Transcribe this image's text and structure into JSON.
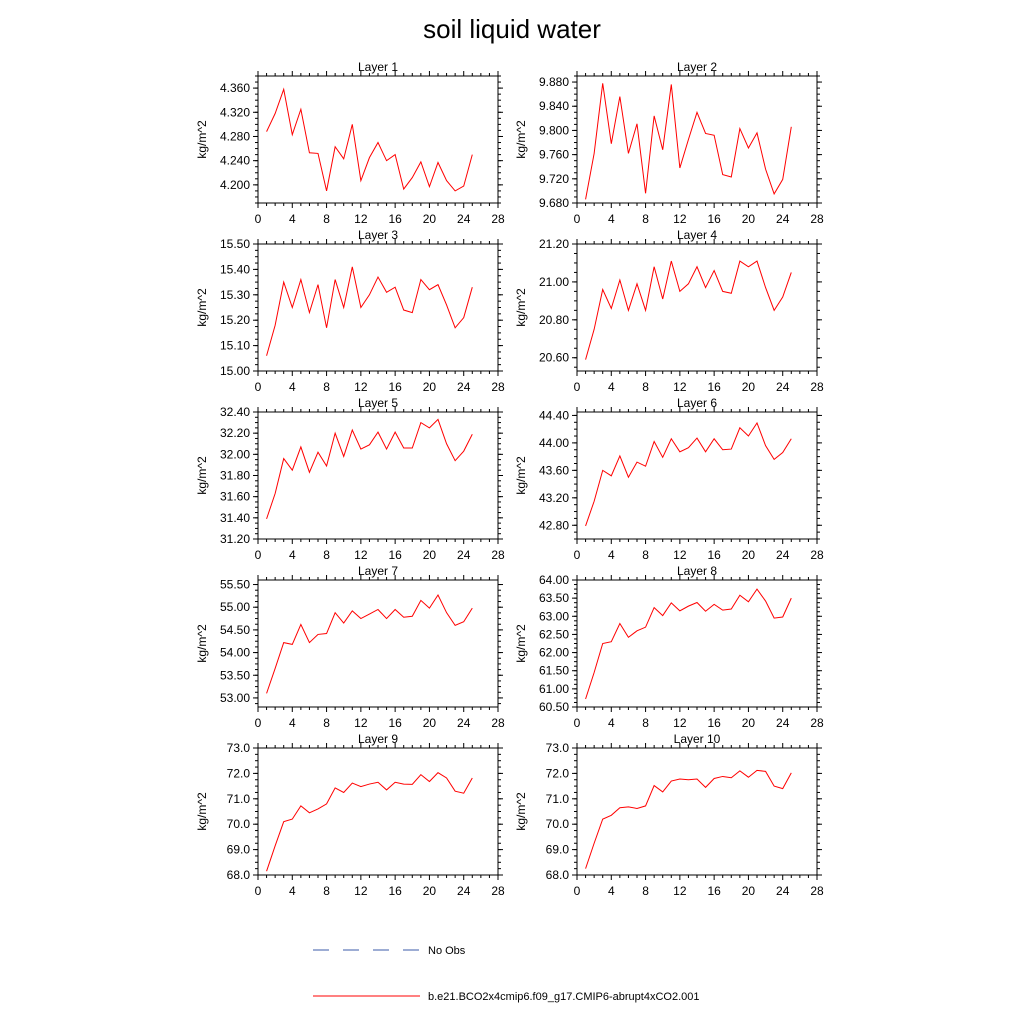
{
  "chart_data": {
    "type": "line",
    "title": "soil liquid water",
    "xticks": [
      "0",
      "4",
      "8",
      "12",
      "16",
      "20",
      "24",
      "28"
    ],
    "xlim": [
      0,
      28
    ],
    "grid": false,
    "legend_placement": "bottom-center",
    "legend": [
      {
        "label": "No Obs",
        "color": "#3b5ba9",
        "style": "dashed"
      },
      {
        "label": "b.e21.BCO2x4cmip6.f09_g17.CMIP6-abrupt4xCO2.001",
        "color": "#ff0000",
        "style": "solid"
      }
    ],
    "panels": [
      {
        "title": "Layer 1",
        "ylabel": "kg/m^2",
        "ylim": [
          4.17,
          4.38
        ],
        "yticks": [
          "4.200",
          "4.240",
          "4.280",
          "4.320",
          "4.360"
        ],
        "series": [
          {
            "name": "b.e21.BCO2x4cmip6.f09_g17.CMIP6-abrupt4xCO2.001",
            "color": "#ff0000",
            "x": [
              1,
              2,
              3,
              4,
              5,
              6,
              7,
              8,
              9,
              10,
              11,
              12,
              13,
              14,
              15,
              16,
              17,
              18,
              19,
              20,
              21,
              22,
              23,
              24,
              25
            ],
            "y": [
              4.288,
              4.318,
              4.358,
              4.283,
              4.325,
              4.253,
              4.252,
              4.19,
              4.263,
              4.243,
              4.3,
              4.207,
              4.245,
              4.27,
              4.24,
              4.25,
              4.193,
              4.212,
              4.238,
              4.197,
              4.237,
              4.207,
              4.19,
              4.198,
              4.25
            ]
          }
        ]
      },
      {
        "title": "Layer 2",
        "ylabel": "kg/m^2",
        "ylim": [
          9.68,
          9.89
        ],
        "yticks": [
          "9.680",
          "9.720",
          "9.760",
          "9.800",
          "9.840",
          "9.880"
        ],
        "series": [
          {
            "name": "b.e21.BCO2x4cmip6.f09_g17.CMIP6-abrupt4xCO2.001",
            "color": "#ff0000",
            "x": [
              1,
              2,
              3,
              4,
              5,
              6,
              7,
              8,
              9,
              10,
              11,
              12,
              13,
              14,
              15,
              16,
              17,
              18,
              19,
              20,
              21,
              22,
              23,
              24,
              25
            ],
            "y": [
              9.686,
              9.762,
              9.878,
              9.778,
              9.856,
              9.762,
              9.811,
              9.696,
              9.824,
              9.768,
              9.876,
              9.738,
              9.785,
              9.83,
              9.795,
              9.792,
              9.727,
              9.723,
              9.803,
              9.771,
              9.796,
              9.736,
              9.695,
              9.719,
              9.806
            ]
          }
        ]
      },
      {
        "title": "Layer 3",
        "ylabel": "kg/m^2",
        "ylim": [
          15.0,
          15.5
        ],
        "yticks": [
          "15.00",
          "15.10",
          "15.20",
          "15.30",
          "15.40",
          "15.50"
        ],
        "series": [
          {
            "name": "b.e21.BCO2x4cmip6.f09_g17.CMIP6-abrupt4xCO2.001",
            "color": "#ff0000",
            "x": [
              1,
              2,
              3,
              4,
              5,
              6,
              7,
              8,
              9,
              10,
              11,
              12,
              13,
              14,
              15,
              16,
              17,
              18,
              19,
              20,
              21,
              22,
              23,
              24,
              25
            ],
            "y": [
              15.06,
              15.18,
              15.35,
              15.25,
              15.36,
              15.23,
              15.34,
              15.17,
              15.36,
              15.25,
              15.41,
              15.25,
              15.3,
              15.37,
              15.31,
              15.33,
              15.24,
              15.23,
              15.36,
              15.32,
              15.34,
              15.26,
              15.17,
              15.21,
              15.33
            ]
          }
        ]
      },
      {
        "title": "Layer 4",
        "ylabel": "kg/m^2",
        "ylim": [
          20.53,
          21.2
        ],
        "yticks": [
          "20.60",
          "20.80",
          "21.00",
          "21.20"
        ],
        "series": [
          {
            "name": "b.e21.BCO2x4cmip6.f09_g17.CMIP6-abrupt4xCO2.001",
            "color": "#ff0000",
            "x": [
              1,
              2,
              3,
              4,
              5,
              6,
              7,
              8,
              9,
              10,
              11,
              12,
              13,
              14,
              15,
              16,
              17,
              18,
              19,
              20,
              21,
              22,
              23,
              24,
              25
            ],
            "y": [
              20.59,
              20.75,
              20.96,
              20.86,
              21.01,
              20.85,
              20.99,
              20.85,
              21.08,
              20.91,
              21.11,
              20.95,
              20.99,
              21.08,
              20.97,
              21.06,
              20.95,
              20.94,
              21.11,
              21.08,
              21.11,
              20.97,
              20.85,
              20.92,
              21.05
            ]
          }
        ]
      },
      {
        "title": "Layer 5",
        "ylabel": "kg/m^2",
        "ylim": [
          31.2,
          32.4
        ],
        "yticks": [
          "31.20",
          "31.40",
          "31.60",
          "31.80",
          "32.00",
          "32.20",
          "32.40"
        ],
        "series": [
          {
            "name": "b.e21.BCO2x4cmip6.f09_g17.CMIP6-abrupt4xCO2.001",
            "color": "#ff0000",
            "x": [
              1,
              2,
              3,
              4,
              5,
              6,
              7,
              8,
              9,
              10,
              11,
              12,
              13,
              14,
              15,
              16,
              17,
              18,
              19,
              20,
              21,
              22,
              23,
              24,
              25
            ],
            "y": [
              31.39,
              31.63,
              31.96,
              31.85,
              32.07,
              31.83,
              32.02,
              31.89,
              32.2,
              31.98,
              32.23,
              32.05,
              32.09,
              32.21,
              32.05,
              32.21,
              32.06,
              32.06,
              32.3,
              32.25,
              32.33,
              32.1,
              31.94,
              32.03,
              32.19
            ]
          }
        ]
      },
      {
        "title": "Layer 6",
        "ylabel": "kg/m^2",
        "ylim": [
          42.6,
          44.45
        ],
        "yticks": [
          "42.80",
          "43.20",
          "43.60",
          "44.00",
          "44.40"
        ],
        "series": [
          {
            "name": "b.e21.BCO2x4cmip6.f09_g17.CMIP6-abrupt4xCO2.001",
            "color": "#ff0000",
            "x": [
              1,
              2,
              3,
              4,
              5,
              6,
              7,
              8,
              9,
              10,
              11,
              12,
              13,
              14,
              15,
              16,
              17,
              18,
              19,
              20,
              21,
              22,
              23,
              24,
              25
            ],
            "y": [
              42.79,
              43.15,
              43.6,
              43.52,
              43.81,
              43.5,
              43.72,
              43.66,
              44.02,
              43.79,
              44.06,
              43.87,
              43.93,
              44.07,
              43.87,
              44.06,
              43.9,
              43.91,
              44.22,
              44.1,
              44.29,
              43.96,
              43.76,
              43.86,
              44.06
            ]
          }
        ]
      },
      {
        "title": "Layer 7",
        "ylabel": "kg/m^2",
        "ylim": [
          52.8,
          55.6
        ],
        "yticks": [
          "53.00",
          "53.50",
          "54.00",
          "54.50",
          "55.00",
          "55.50"
        ],
        "series": [
          {
            "name": "b.e21.BCO2x4cmip6.f09_g17.CMIP6-abrupt4xCO2.001",
            "color": "#ff0000",
            "x": [
              1,
              2,
              3,
              4,
              5,
              6,
              7,
              8,
              9,
              10,
              11,
              12,
              13,
              14,
              15,
              16,
              17,
              18,
              19,
              20,
              21,
              22,
              23,
              24,
              25
            ],
            "y": [
              53.1,
              53.65,
              54.22,
              54.18,
              54.62,
              54.22,
              54.4,
              54.42,
              54.88,
              54.65,
              54.92,
              54.75,
              54.85,
              54.95,
              54.75,
              54.95,
              54.78,
              54.8,
              55.15,
              54.98,
              55.27,
              54.88,
              54.6,
              54.68,
              54.98
            ]
          }
        ]
      },
      {
        "title": "Layer 8",
        "ylabel": "kg/m^2",
        "ylim": [
          60.5,
          64.0
        ],
        "yticks": [
          "60.50",
          "61.00",
          "61.50",
          "62.00",
          "62.50",
          "63.00",
          "63.50",
          "64.00"
        ],
        "series": [
          {
            "name": "b.e21.BCO2x4cmip6.f09_g17.CMIP6-abrupt4xCO2.001",
            "color": "#ff0000",
            "x": [
              1,
              2,
              3,
              4,
              5,
              6,
              7,
              8,
              9,
              10,
              11,
              12,
              13,
              14,
              15,
              16,
              17,
              18,
              19,
              20,
              21,
              22,
              23,
              24,
              25
            ],
            "y": [
              60.72,
              61.45,
              62.25,
              62.3,
              62.8,
              62.42,
              62.6,
              62.7,
              63.24,
              63.02,
              63.37,
              63.15,
              63.28,
              63.38,
              63.14,
              63.33,
              63.17,
              63.2,
              63.58,
              63.4,
              63.75,
              63.42,
              62.95,
              62.98,
              63.5
            ]
          }
        ]
      },
      {
        "title": "Layer 9",
        "ylabel": "kg/m^2",
        "ylim": [
          68.0,
          73.0
        ],
        "yticks": [
          "68.0",
          "69.0",
          "70.0",
          "71.0",
          "72.0",
          "73.0"
        ],
        "series": [
          {
            "name": "b.e21.BCO2x4cmip6.f09_g17.CMIP6-abrupt4xCO2.001",
            "color": "#ff0000",
            "x": [
              1,
              2,
              3,
              4,
              5,
              6,
              7,
              8,
              9,
              10,
              11,
              12,
              13,
              14,
              15,
              16,
              17,
              18,
              19,
              20,
              21,
              22,
              23,
              24,
              25
            ],
            "y": [
              68.15,
              69.15,
              70.1,
              70.2,
              70.72,
              70.45,
              70.6,
              70.8,
              71.43,
              71.25,
              71.62,
              71.48,
              71.58,
              71.65,
              71.35,
              71.65,
              71.58,
              71.57,
              71.95,
              71.68,
              72.03,
              71.82,
              71.3,
              71.22,
              71.82
            ]
          }
        ]
      },
      {
        "title": "Layer 10",
        "ylabel": "kg/m^2",
        "ylim": [
          68.0,
          73.0
        ],
        "yticks": [
          "68.0",
          "69.0",
          "70.0",
          "71.0",
          "72.0",
          "73.0"
        ],
        "series": [
          {
            "name": "b.e21.BCO2x4cmip6.f09_g17.CMIP6-abrupt4xCO2.001",
            "color": "#ff0000",
            "x": [
              1,
              2,
              3,
              4,
              5,
              6,
              7,
              8,
              9,
              10,
              11,
              12,
              13,
              14,
              15,
              16,
              17,
              18,
              19,
              20,
              21,
              22,
              23,
              24,
              25
            ],
            "y": [
              68.25,
              69.25,
              70.2,
              70.35,
              70.65,
              70.68,
              70.62,
              70.72,
              71.52,
              71.27,
              71.7,
              71.78,
              71.75,
              71.78,
              71.45,
              71.8,
              71.88,
              71.83,
              72.1,
              71.85,
              72.12,
              72.08,
              71.5,
              71.4,
              72.02
            ]
          }
        ]
      }
    ]
  }
}
